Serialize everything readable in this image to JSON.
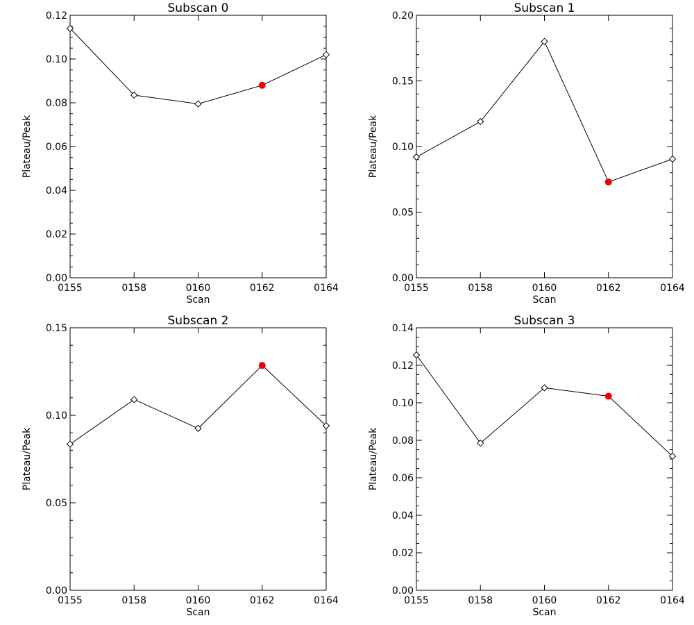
{
  "colors": {
    "line": "#000000",
    "highlight": "#ee0000",
    "background": "#ffffff"
  },
  "chart_data": [
    {
      "type": "line",
      "title": "Subscan 0",
      "xlabel": "Scan",
      "ylabel": "Plateau/Peak",
      "x_tick_labels": [
        "0155",
        "0158",
        "0160",
        "0162",
        "0164"
      ],
      "y_tick_labels": [
        "0.00",
        "0.02",
        "0.04",
        "0.06",
        "0.08",
        "0.10",
        "0.12"
      ],
      "ylim": [
        0,
        0.12
      ],
      "y_minor_step": 0.005,
      "values": [
        0.114,
        0.0835,
        0.0795,
        0.088,
        0.102
      ],
      "highlight_index": 3,
      "marker": "diamond"
    },
    {
      "type": "line",
      "title": "Subscan 1",
      "xlabel": "Scan",
      "ylabel": "Plateau/Peak",
      "x_tick_labels": [
        "0155",
        "0158",
        "0160",
        "0162",
        "0164"
      ],
      "y_tick_labels": [
        "0.00",
        "0.05",
        "0.10",
        "0.15",
        "0.20"
      ],
      "ylim": [
        0,
        0.2
      ],
      "y_minor_step": 0.01,
      "values": [
        0.092,
        0.119,
        0.18,
        0.073,
        0.0905
      ],
      "highlight_index": 3,
      "marker": "diamond"
    },
    {
      "type": "line",
      "title": "Subscan 2",
      "xlabel": "Scan",
      "ylabel": "Plateau/Peak",
      "x_tick_labels": [
        "0155",
        "0158",
        "0160",
        "0162",
        "0164"
      ],
      "y_tick_labels": [
        "0.00",
        "0.05",
        "0.10",
        "0.15"
      ],
      "ylim": [
        0,
        0.15
      ],
      "y_minor_step": 0.01,
      "values": [
        0.0835,
        0.109,
        0.0925,
        0.1285,
        0.094
      ],
      "highlight_index": 3,
      "marker": "diamond"
    },
    {
      "type": "line",
      "title": "Subscan 3",
      "xlabel": "Scan",
      "ylabel": "Plateau/Peak",
      "x_tick_labels": [
        "0155",
        "0158",
        "0160",
        "0162",
        "0164"
      ],
      "y_tick_labels": [
        "0.00",
        "0.02",
        "0.04",
        "0.06",
        "0.08",
        "0.10",
        "0.12",
        "0.14"
      ],
      "ylim": [
        0,
        0.14
      ],
      "y_minor_step": 0.005,
      "values": [
        0.1255,
        0.0785,
        0.108,
        0.1035,
        0.0715
      ],
      "highlight_index": 3,
      "marker": "diamond"
    }
  ]
}
